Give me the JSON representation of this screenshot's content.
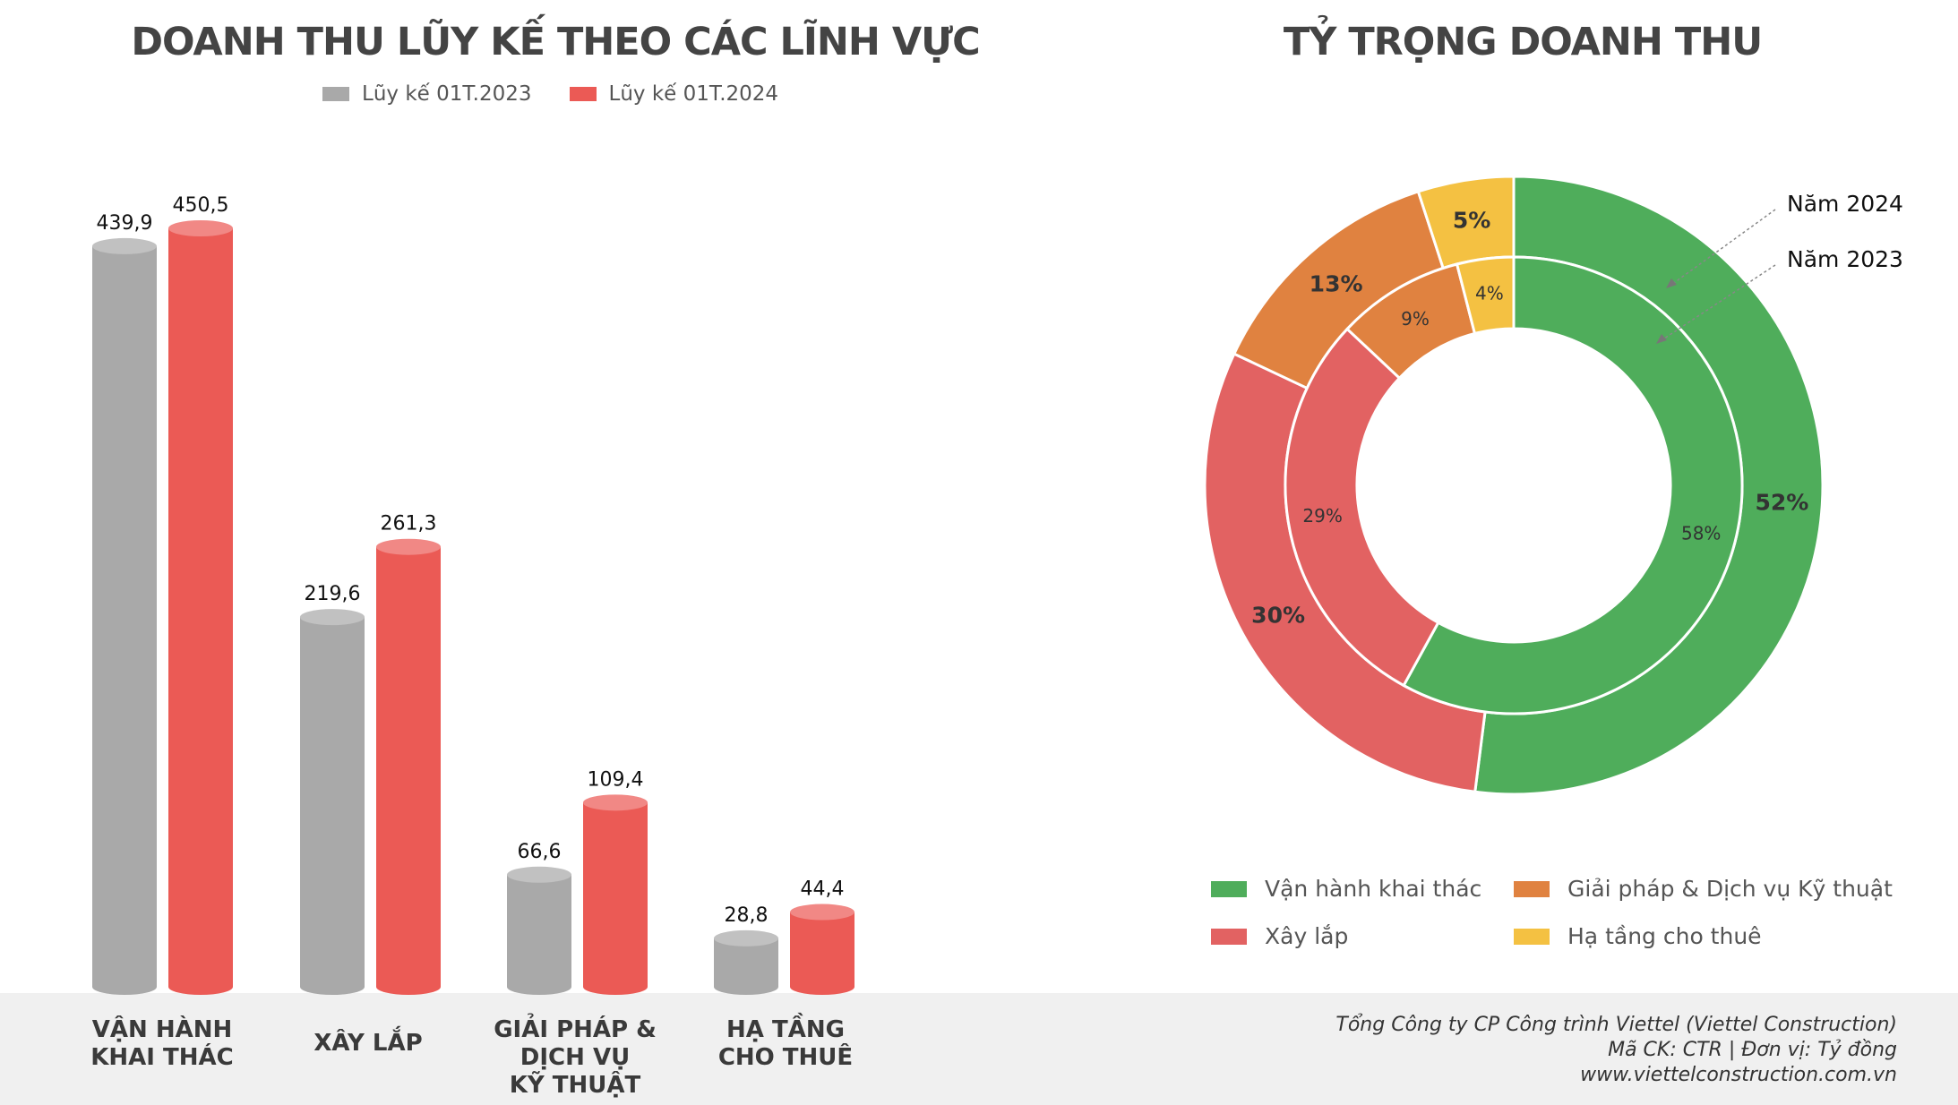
{
  "bar_chart": {
    "title": "DOANH THU LŨY KẾ THEO CÁC LĨNH VỰC",
    "legend": [
      {
        "label": "Lũy kế 01T.2023",
        "color": "#a9a9a9"
      },
      {
        "label": "Lũy kế 01T.2024",
        "color": "#eb5a55"
      }
    ],
    "categories": [
      {
        "line1": "VẬN HÀNH",
        "line2": "KHAI THÁC",
        "line3": ""
      },
      {
        "line1": "XÂY LẮP",
        "line2": "",
        "line3": ""
      },
      {
        "line1": "GIẢI PHÁP &",
        "line2": "DỊCH VỤ",
        "line3": "KỸ THUẬT"
      },
      {
        "line1": "HẠ TẦNG",
        "line2": "CHO THUÊ",
        "line3": ""
      }
    ]
  },
  "donut_chart": {
    "title": "TỶ TRỌNG DOANH THU",
    "ring_labels": {
      "outer": "Năm 2024",
      "inner": "Năm 2023"
    },
    "legend": [
      {
        "label": "Vận hành khai thác",
        "color": "#4fad5b"
      },
      {
        "label": "Giải pháp & Dịch vụ Kỹ thuật",
        "color": "#e08240"
      },
      {
        "label": "Xây lắp",
        "color": "#e26262"
      },
      {
        "label": "Hạ tầng cho thuê",
        "color": "#f4c142"
      }
    ]
  },
  "source": {
    "line1": "Tổng Công ty CP Công trình Viettel (Viettel Construction)",
    "line2": "Mã CK: CTR  |  Đơn vị: Tỷ đồng",
    "line3": "www.viettelconstruction.com.vn"
  },
  "chart_data": [
    {
      "type": "bar",
      "title": "DOANH THU LŨY KẾ THEO CÁC LĨNH VỰC",
      "categories": [
        "VẬN HÀNH KHAI THÁC",
        "XÂY LẮP",
        "GIẢI PHÁP & DỊCH VỤ KỸ THUẬT",
        "HẠ TẦNG CHO THUÊ"
      ],
      "series": [
        {
          "name": "Lũy kế 01T.2023",
          "values": [
            439.9,
            219.6,
            66.6,
            28.8
          ],
          "labels": [
            "439,9",
            "219,6",
            "66,6",
            "28,8"
          ],
          "color": "#a9a9a9"
        },
        {
          "name": "Lũy kế 01T.2024",
          "values": [
            450.5,
            261.3,
            109.4,
            44.4
          ],
          "labels": [
            "450,5",
            "261,3",
            "109,4",
            "44,4"
          ],
          "color": "#eb5a55"
        }
      ],
      "ylim": [
        0,
        450.5
      ],
      "grid": false,
      "legend": "top"
    },
    {
      "type": "pie",
      "title": "TỶ TRỌNG DOANH THU",
      "categories": [
        "Vận hành khai thác",
        "Xây lắp",
        "Giải pháp & Dịch vụ Kỹ thuật",
        "Hạ tầng cho thuê"
      ],
      "series": [
        {
          "name": "Năm 2024",
          "values": [
            52,
            30,
            13,
            5
          ],
          "labels": [
            "52%",
            "30%",
            "13%",
            "5%"
          ]
        },
        {
          "name": "Năm 2023",
          "values": [
            58,
            29,
            9,
            4
          ],
          "labels": [
            "58%",
            "29%",
            "9%",
            "4%"
          ]
        }
      ],
      "colors": [
        "#4fad5b",
        "#e26262",
        "#e08240",
        "#f4c142"
      ],
      "legend": "bottom"
    }
  ]
}
